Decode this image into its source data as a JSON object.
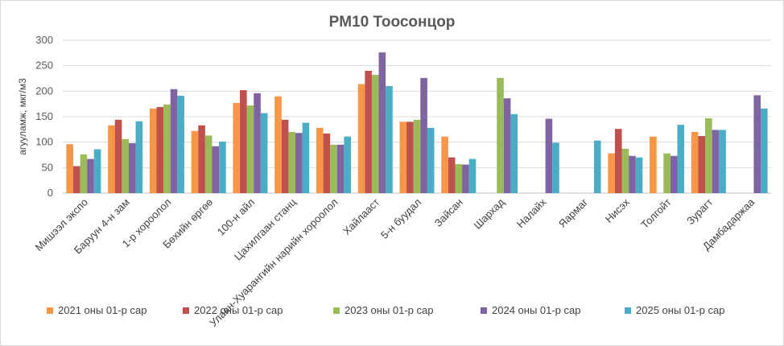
{
  "chart_data": {
    "type": "bar",
    "title": "PM10 Тоосонцор",
    "ylabel": "агууламж, мкг/м3",
    "xlabel": "",
    "ylim": [
      0,
      300
    ],
    "yticks": [
      0,
      50,
      100,
      150,
      200,
      250,
      300
    ],
    "grid": true,
    "legend_position": "bottom",
    "categories": [
      "Мишээл экспо",
      "Баруун 4-н зам",
      "1-р хороолол",
      "Бөхийн өргөө",
      "100-н айл",
      "Цахилгаан станц",
      "Улаан-Хуарангийн нарийн хороолол",
      "Хайлааст",
      "5-н буудал",
      "Зайсан",
      "Шархад",
      "Налайх",
      "Яармаг",
      "Нисэх",
      "Толгойт",
      "Зурагт",
      "Дамбадаржаа"
    ],
    "series": [
      {
        "name": "2021 оны 01-р сар",
        "color": "#F79646",
        "values": [
          96,
          133,
          166,
          122,
          177,
          190,
          128,
          214,
          140,
          111,
          null,
          null,
          null,
          78,
          111,
          120,
          null
        ]
      },
      {
        "name": "2022 оны 01-р сар",
        "color": "#C0504D",
        "values": [
          53,
          144,
          169,
          133,
          202,
          144,
          117,
          240,
          140,
          70,
          null,
          null,
          null,
          126,
          null,
          112,
          null
        ]
      },
      {
        "name": "2023 оны 01-р сар",
        "color": "#9BBB59",
        "values": [
          76,
          106,
          174,
          113,
          172,
          120,
          95,
          232,
          144,
          57,
          226,
          null,
          null,
          87,
          78,
          147,
          null
        ]
      },
      {
        "name": "2024 оны 01-р сар",
        "color": "#8064A2",
        "values": [
          67,
          98,
          204,
          92,
          196,
          118,
          95,
          276,
          226,
          56,
          186,
          146,
          null,
          73,
          73,
          124,
          192
        ]
      },
      {
        "name": "2025 оны 01-р сар",
        "color": "#4BACC6",
        "values": [
          86,
          141,
          191,
          101,
          157,
          138,
          111,
          210,
          128,
          67,
          155,
          99,
          103,
          70,
          134,
          124,
          166
        ]
      }
    ]
  }
}
